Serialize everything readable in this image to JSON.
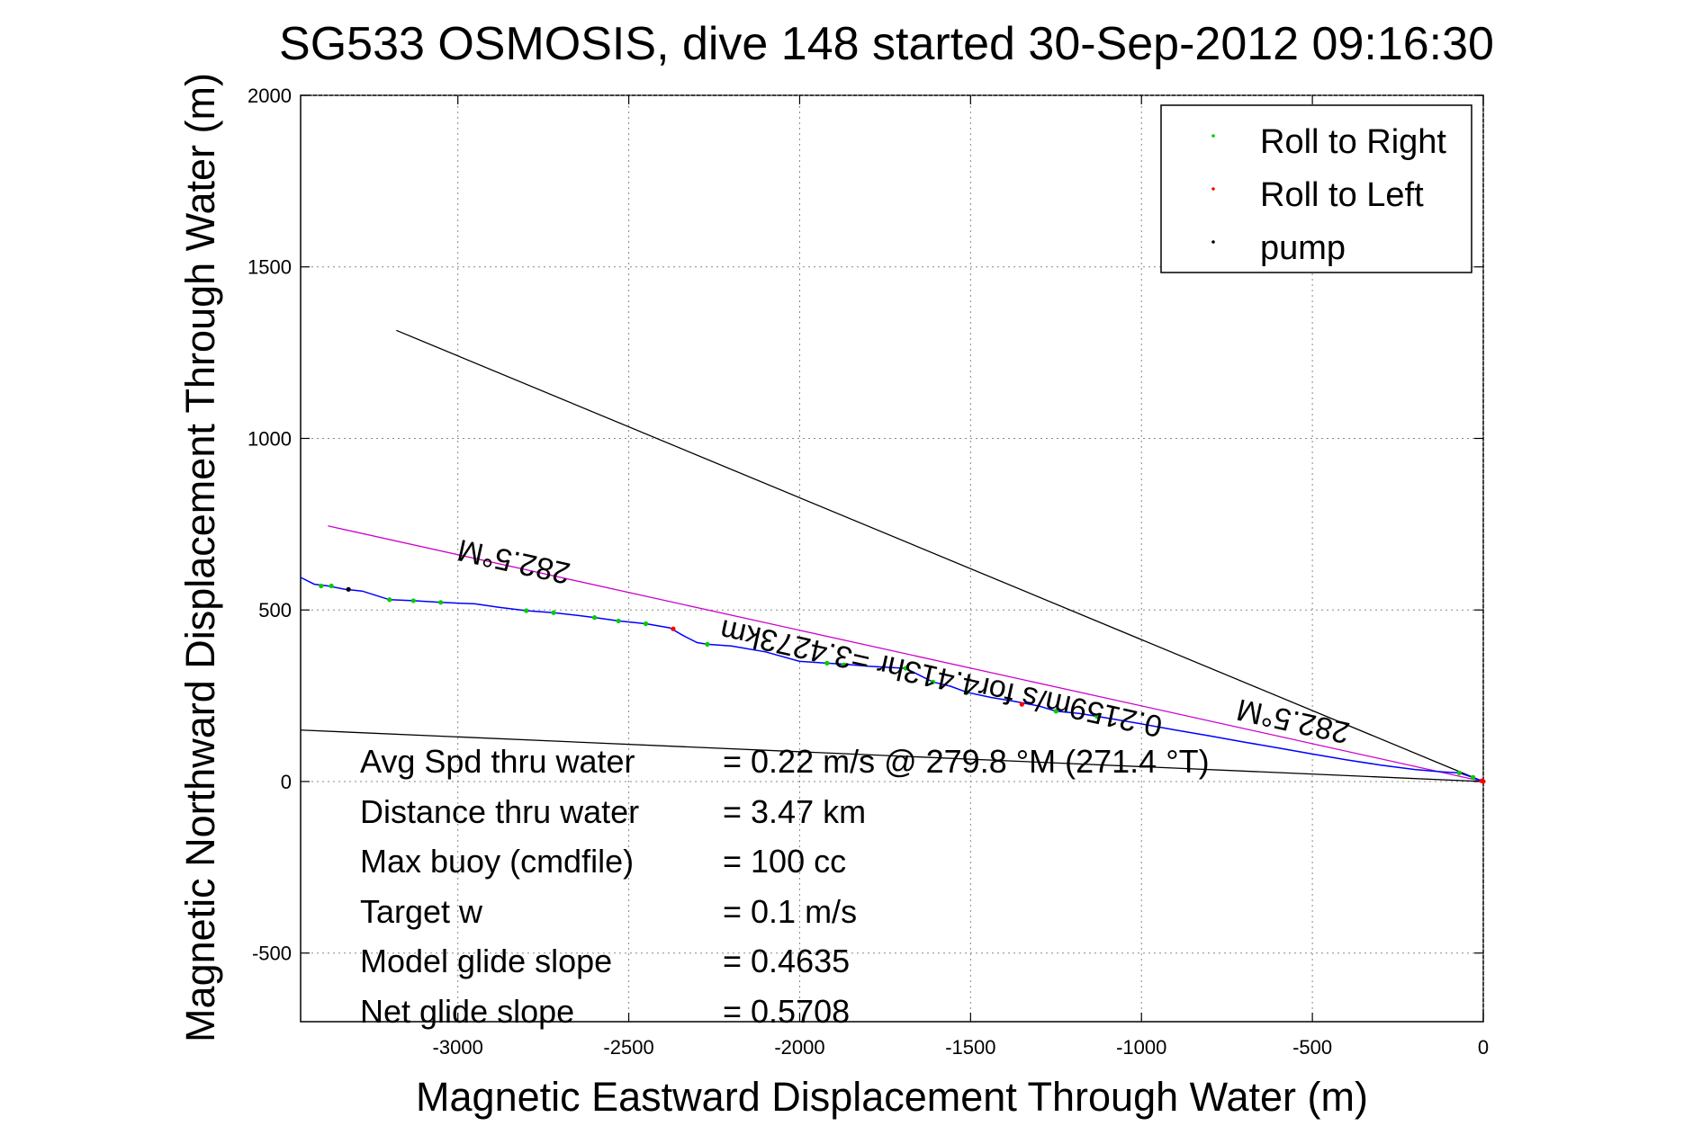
{
  "chart_data": {
    "type": "scatter",
    "title": "SG533 OSMOSIS, dive 148 started 30-Sep-2012 09:16:30",
    "xlabel": "Magnetic Eastward Displacement Through Water (m)",
    "ylabel": "Magnetic Northward Displacement Through Water (m)",
    "xlim": [
      -3460,
      0
    ],
    "ylim": [
      -700,
      2000
    ],
    "xticks": [
      -3000,
      -2500,
      -2000,
      -1500,
      -1000,
      -500,
      0
    ],
    "yticks": [
      -500,
      0,
      500,
      1000,
      1500,
      2000
    ],
    "xtick_labels": [
      "-3000",
      "-2500",
      "-2000",
      "-1500",
      "-1000",
      "-500",
      "0"
    ],
    "ytick_labels": [
      "-500",
      "0",
      "500",
      "1000",
      "1500",
      "2000"
    ],
    "grid": true,
    "legend_position": "top-right",
    "series": [
      {
        "name": "Roll to Right",
        "color": "#00cc00",
        "marker": "dot",
        "points": [
          [
            -3400,
            570
          ],
          [
            -3370,
            570
          ],
          [
            -3200,
            530
          ],
          [
            -3130,
            527
          ],
          [
            -3050,
            522
          ],
          [
            -2800,
            498
          ],
          [
            -2720,
            492
          ],
          [
            -2600,
            478
          ],
          [
            -2530,
            468
          ],
          [
            -2450,
            460
          ],
          [
            -2270,
            400
          ],
          [
            -1920,
            345
          ],
          [
            -1870,
            340
          ],
          [
            -1690,
            330
          ],
          [
            -1610,
            290
          ],
          [
            -1510,
            260
          ],
          [
            -1250,
            205
          ],
          [
            -1130,
            190
          ],
          [
            -70,
            25
          ],
          [
            -30,
            12
          ]
        ]
      },
      {
        "name": "Roll to Left",
        "color": "#ff0000",
        "marker": "dot",
        "points": [
          [
            -2370,
            445
          ],
          [
            -1350,
            225
          ],
          [
            -5,
            2
          ],
          [
            0,
            0
          ]
        ]
      },
      {
        "name": "pump",
        "color": "#000000",
        "marker": "dot",
        "points": [
          [
            -3320,
            560
          ]
        ]
      }
    ],
    "track": {
      "color": "#0000ff",
      "points": [
        [
          -3460,
          595
        ],
        [
          -3420,
          575
        ],
        [
          -3380,
          570
        ],
        [
          -3330,
          560
        ],
        [
          -3280,
          555
        ],
        [
          -3200,
          530
        ],
        [
          -3130,
          527
        ],
        [
          -3050,
          522
        ],
        [
          -2950,
          518
        ],
        [
          -2880,
          508
        ],
        [
          -2800,
          498
        ],
        [
          -2720,
          492
        ],
        [
          -2650,
          484
        ],
        [
          -2600,
          478
        ],
        [
          -2530,
          468
        ],
        [
          -2450,
          460
        ],
        [
          -2380,
          448
        ],
        [
          -2340,
          425
        ],
        [
          -2300,
          405
        ],
        [
          -2270,
          400
        ],
        [
          -2200,
          395
        ],
        [
          -2100,
          378
        ],
        [
          -2000,
          350
        ],
        [
          -1920,
          345
        ],
        [
          -1870,
          342
        ],
        [
          -1800,
          336
        ],
        [
          -1690,
          330
        ],
        [
          -1610,
          290
        ],
        [
          -1560,
          278
        ],
        [
          -1510,
          260
        ],
        [
          -1440,
          245
        ],
        [
          -1380,
          235
        ],
        [
          -1300,
          220
        ],
        [
          -1250,
          205
        ],
        [
          -1180,
          198
        ],
        [
          -1130,
          190
        ],
        [
          -1000,
          168
        ],
        [
          -900,
          150
        ],
        [
          -800,
          133
        ],
        [
          -700,
          115
        ],
        [
          -600,
          98
        ],
        [
          -500,
          80
        ],
        [
          -400,
          63
        ],
        [
          -300,
          48
        ],
        [
          -200,
          35
        ],
        [
          -120,
          28
        ],
        [
          -70,
          25
        ],
        [
          -30,
          12
        ],
        [
          0,
          0
        ]
      ]
    },
    "reference_lines": [
      {
        "color": "#cc00cc",
        "from": [
          -3380,
          745
        ],
        "to": [
          0,
          0
        ],
        "label": "282.5°M",
        "label_rotation": 180
      },
      {
        "color": "#000000",
        "from": [
          -3180,
          1315
        ],
        "to": [
          0,
          0
        ],
        "label": "282.5°M",
        "label_rotation": 180
      },
      {
        "color": "#000000",
        "from": [
          -3460,
          150
        ],
        "to": [
          0,
          0
        ],
        "label": ""
      }
    ],
    "annotations": {
      "track_label": "0.2159m/s for4.413hr =3.4273km",
      "stats": [
        {
          "label": "Avg Spd thru water",
          "value": "=  0.22 m/s @ 279.8 °M (271.4 °T)"
        },
        {
          "label": "Distance thru water",
          "value": "=  3.47 km"
        },
        {
          "label": "Max buoy (cmdfile)",
          "value": "= 100 cc"
        },
        {
          "label": "Target w",
          "value": "= 0.1 m/s"
        },
        {
          "label": "Model glide slope",
          "value": "= 0.4635"
        },
        {
          "label": "Net glide slope",
          "value": "= 0.5708"
        }
      ]
    }
  }
}
